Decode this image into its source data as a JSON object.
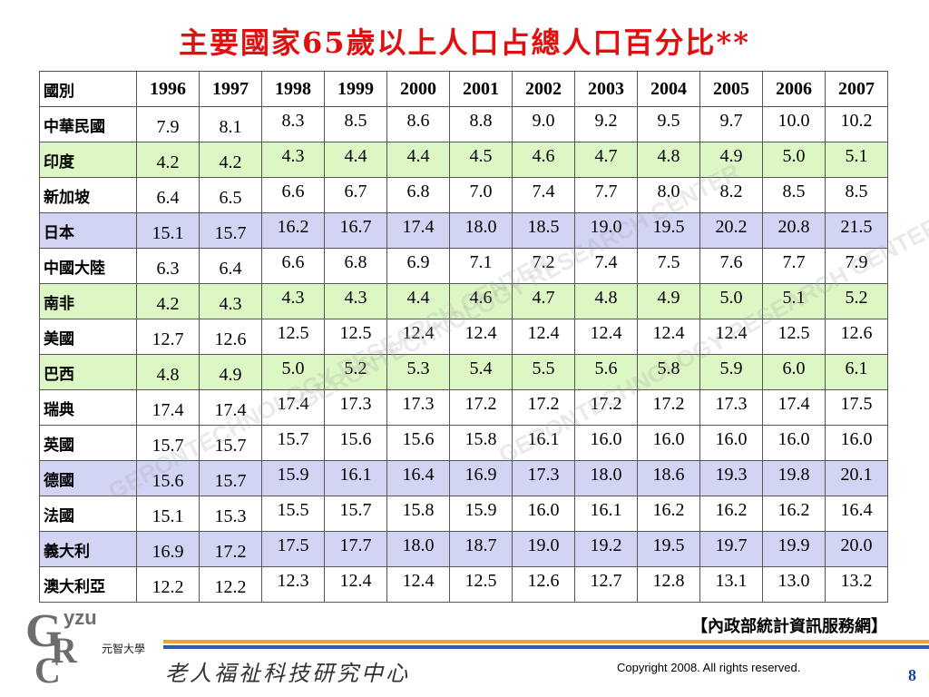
{
  "title": "主要國家65歲以上人口占總人口百分比**",
  "table": {
    "header_country": "國別",
    "years": [
      "1996",
      "1997",
      "1998",
      "1999",
      "2000",
      "2001",
      "2002",
      "2003",
      "2004",
      "2005",
      "2006",
      "2007"
    ],
    "rows": [
      {
        "country": "中華民國",
        "values": [
          "7.9",
          "8.1",
          "8.3",
          "8.5",
          "8.6",
          "8.8",
          "9.0",
          "9.2",
          "9.5",
          "9.7",
          "10.0",
          "10.2"
        ]
      },
      {
        "country": "印度",
        "values": [
          "4.2",
          "4.2",
          "4.3",
          "4.4",
          "4.4",
          "4.5",
          "4.6",
          "4.7",
          "4.8",
          "4.9",
          "5.0",
          "5.1"
        ]
      },
      {
        "country": "新加坡",
        "values": [
          "6.4",
          "6.5",
          "6.6",
          "6.7",
          "6.8",
          "7.0",
          "7.4",
          "7.7",
          "8.0",
          "8.2",
          "8.5",
          "8.5"
        ]
      },
      {
        "country": "日本",
        "values": [
          "15.1",
          "15.7",
          "16.2",
          "16.7",
          "17.4",
          "18.0",
          "18.5",
          "19.0",
          "19.5",
          "20.2",
          "20.8",
          "21.5"
        ]
      },
      {
        "country": "中國大陸",
        "values": [
          "6.3",
          "6.4",
          "6.6",
          "6.8",
          "6.9",
          "7.1",
          "7.2",
          "7.4",
          "7.5",
          "7.6",
          "7.7",
          "7.9"
        ]
      },
      {
        "country": "南非",
        "values": [
          "4.2",
          "4.3",
          "4.3",
          "4.3",
          "4.4",
          "4.6",
          "4.7",
          "4.8",
          "4.9",
          "5.0",
          "5.1",
          "5.2"
        ]
      },
      {
        "country": "美國",
        "values": [
          "12.7",
          "12.6",
          "12.5",
          "12.5",
          "12.4",
          "12.4",
          "12.4",
          "12.4",
          "12.4",
          "12.4",
          "12.5",
          "12.6"
        ]
      },
      {
        "country": "巴西",
        "values": [
          "4.8",
          "4.9",
          "5.0",
          "5.2",
          "5.3",
          "5.4",
          "5.5",
          "5.6",
          "5.8",
          "5.9",
          "6.0",
          "6.1"
        ]
      },
      {
        "country": "瑞典",
        "values": [
          "17.4",
          "17.4",
          "17.4",
          "17.3",
          "17.3",
          "17.2",
          "17.2",
          "17.2",
          "17.2",
          "17.3",
          "17.4",
          "17.5"
        ]
      },
      {
        "country": "英國",
        "values": [
          "15.7",
          "15.7",
          "15.7",
          "15.6",
          "15.6",
          "15.8",
          "16.1",
          "16.0",
          "16.0",
          "16.0",
          "16.0",
          "16.0"
        ]
      },
      {
        "country": "德國",
        "values": [
          "15.6",
          "15.7",
          "15.9",
          "16.1",
          "16.4",
          "16.9",
          "17.3",
          "18.0",
          "18.6",
          "19.3",
          "19.8",
          "20.1"
        ]
      },
      {
        "country": "法國",
        "values": [
          "15.1",
          "15.3",
          "15.5",
          "15.7",
          "15.8",
          "15.9",
          "16.0",
          "16.1",
          "16.2",
          "16.2",
          "16.2",
          "16.4"
        ]
      },
      {
        "country": "義大利",
        "values": [
          "16.9",
          "17.2",
          "17.5",
          "17.7",
          "18.0",
          "18.7",
          "19.0",
          "19.2",
          "19.5",
          "19.7",
          "19.9",
          "20.0"
        ]
      },
      {
        "country": "澳大利亞",
        "values": [
          "12.2",
          "12.2",
          "12.3",
          "12.4",
          "12.4",
          "12.5",
          "12.6",
          "12.7",
          "12.8",
          "13.1",
          "13.0",
          "13.2"
        ]
      }
    ],
    "row_styles": [
      "plain",
      "green",
      "plain",
      "blue",
      "plain",
      "green",
      "plain",
      "green",
      "plain",
      "plain",
      "blue",
      "plain",
      "blue",
      "plain"
    ]
  },
  "colors": {
    "title": "#e01010",
    "highlight_green": "#ddf7c4",
    "highlight_blue": "#d2d4f4",
    "footer_orange": "#f0a23a",
    "footer_blue": "#2b5bb5"
  },
  "watermark": {
    "lines": [
      "GERONTECHNOLOGY RESEARCH CENTER",
      "GERONTECHNOLOGY RESEARCH CENTER",
      "GERONTECHNOLOGY RESEARCH CENTER"
    ]
  },
  "source": "【內政部統計資訊服務網】",
  "logo": {
    "letters": "GyzuCR",
    "university": "元智大學"
  },
  "center_name": "老人福祉科技研究中心",
  "copyright": "Copyright 2008. All rights reserved.",
  "page_number": "8"
}
